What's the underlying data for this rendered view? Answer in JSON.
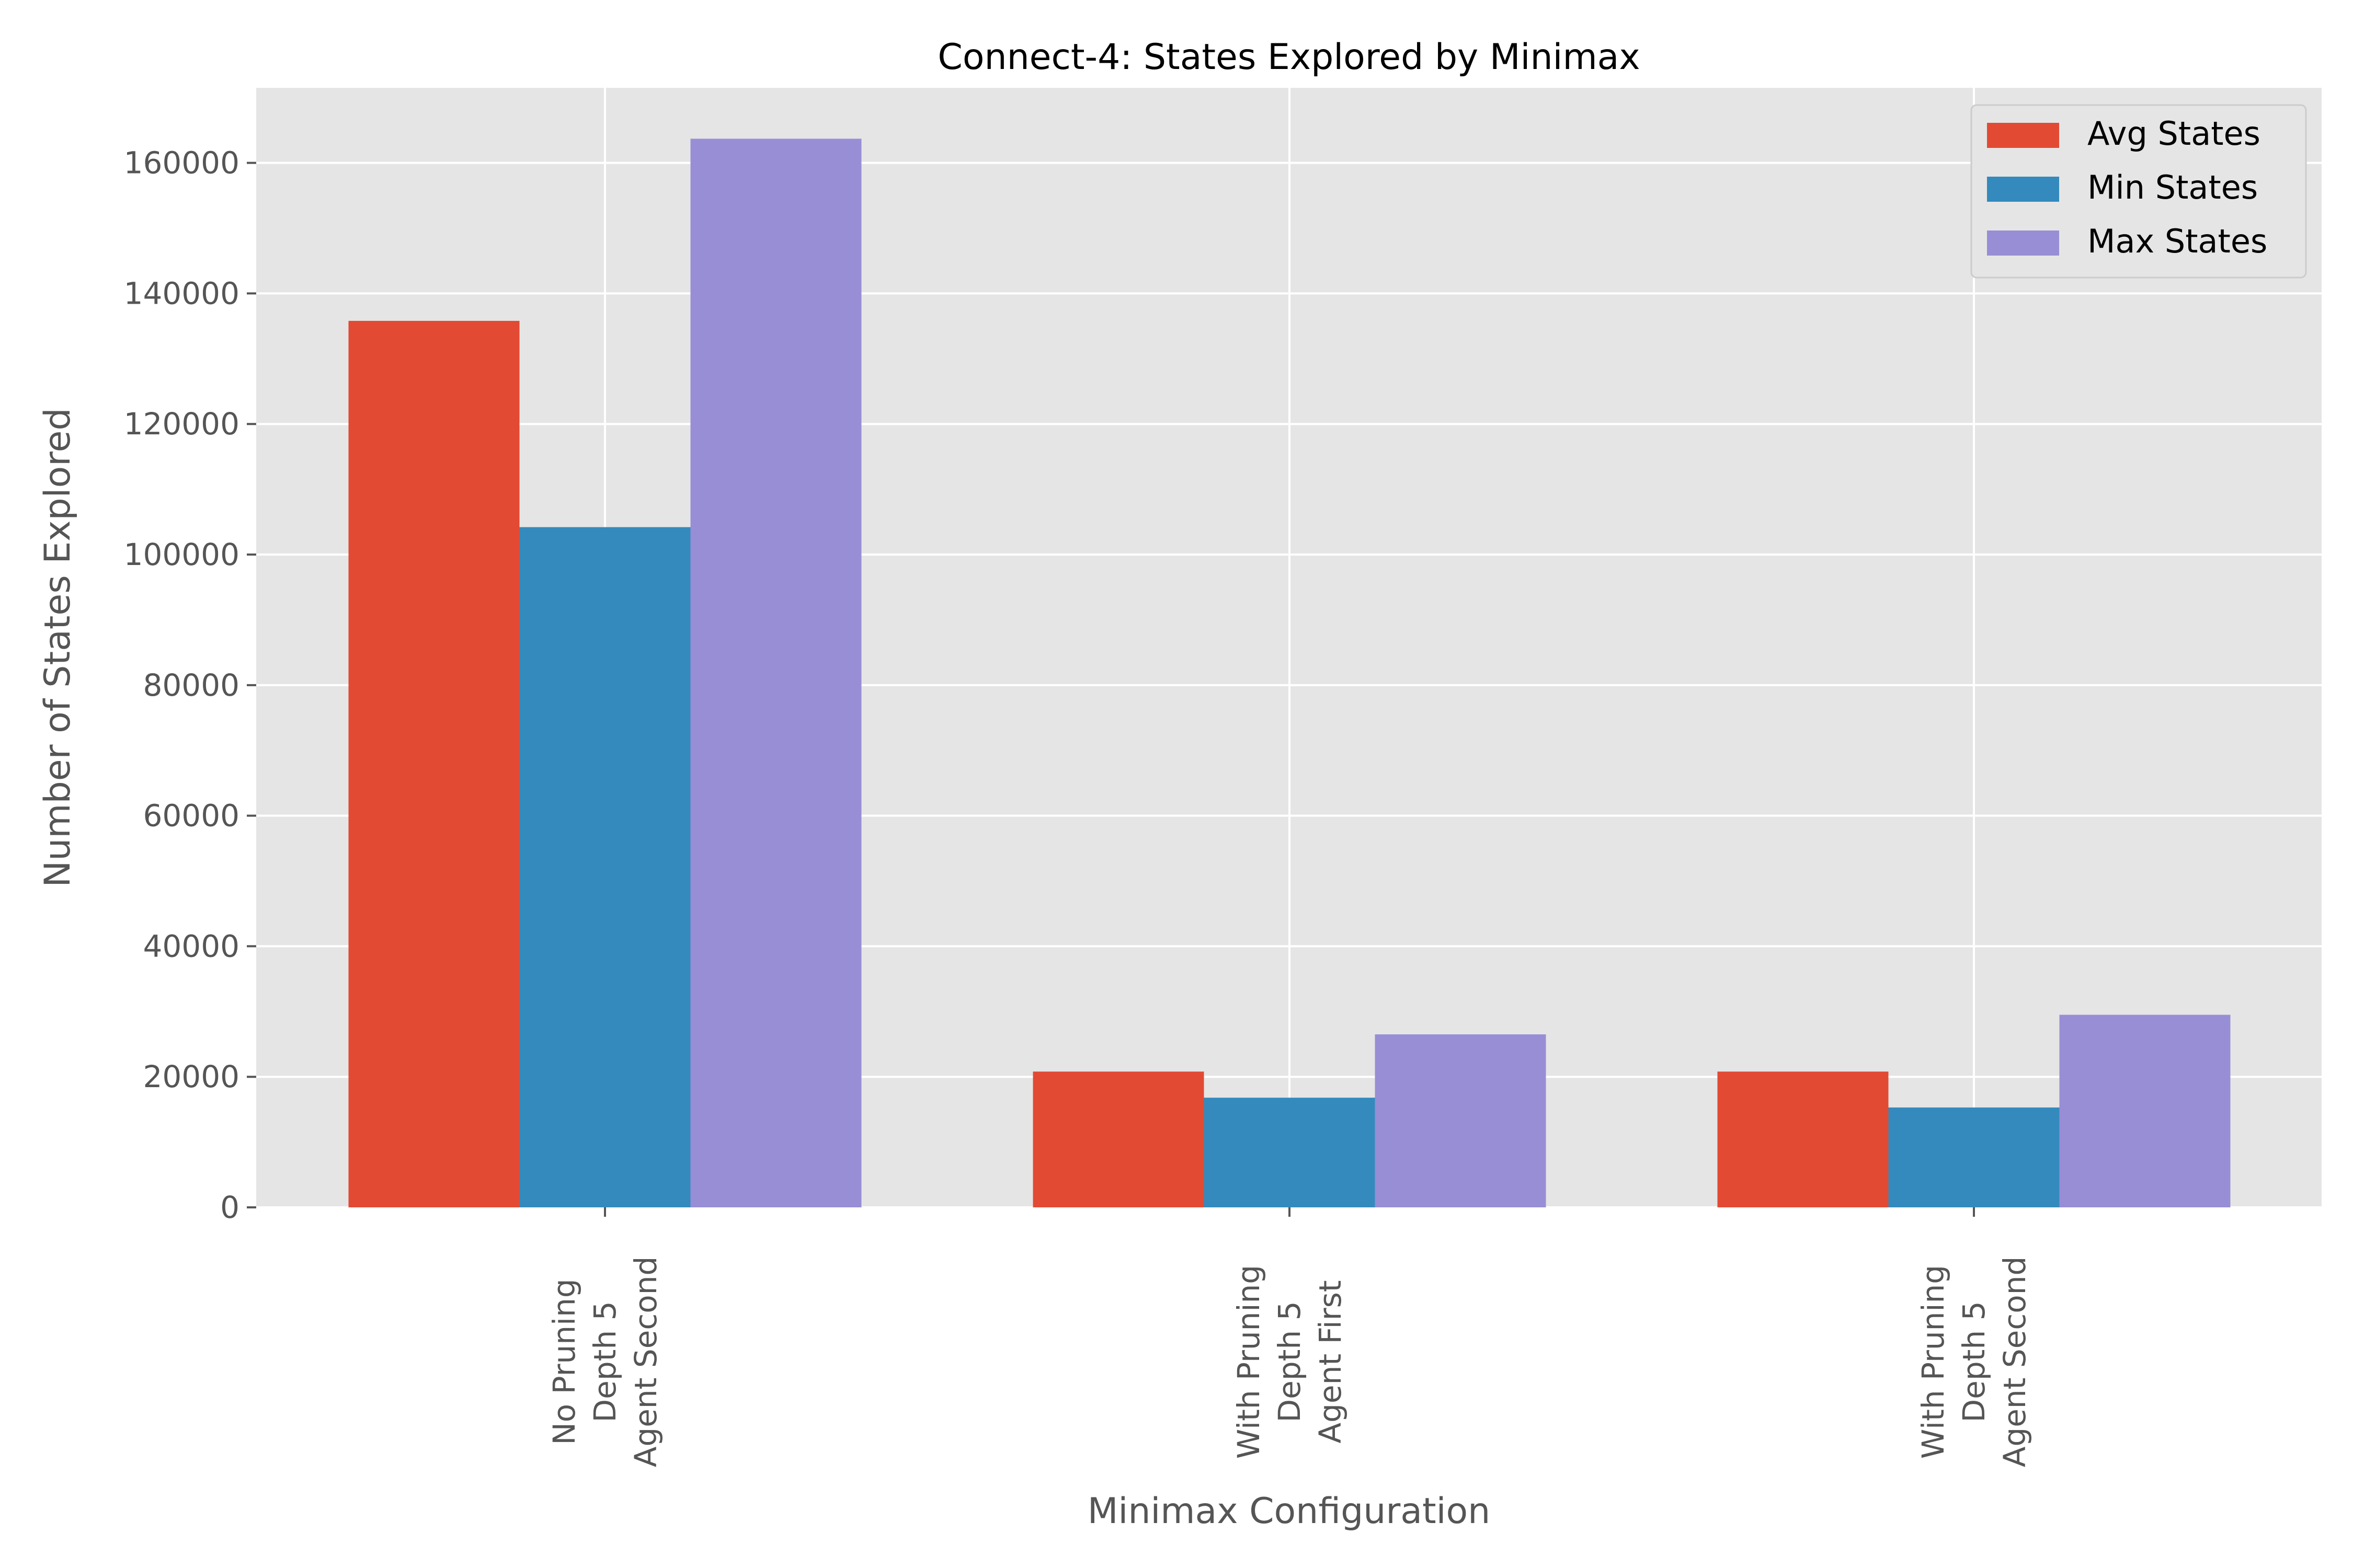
{
  "chart_data": {
    "type": "bar",
    "title": "Connect-4: States Explored by Minimax",
    "xlabel": "Minimax Configuration",
    "ylabel": "Number of States Explored",
    "categories": [
      [
        "No Pruning",
        "Depth 5",
        "Agent Second"
      ],
      [
        "With Pruning",
        "Depth 5",
        "Agent First"
      ],
      [
        "With Pruning",
        "Depth 5",
        "Agent Second"
      ]
    ],
    "series": [
      {
        "name": "Avg States",
        "color": "#E24A33",
        "values": [
          135800,
          20800,
          20800
        ]
      },
      {
        "name": "Min States",
        "color": "#348ABD",
        "values": [
          104200,
          16800,
          15300
        ]
      },
      {
        "name": "Max States",
        "color": "#988ED5",
        "values": [
          163700,
          26500,
          29500
        ]
      }
    ],
    "ylim": [
      0,
      171500
    ],
    "yticks": [
      0,
      20000,
      40000,
      60000,
      80000,
      100000,
      120000,
      140000,
      160000
    ],
    "grid": true,
    "legend_position": "top-right",
    "background": "#E5E5E5"
  }
}
